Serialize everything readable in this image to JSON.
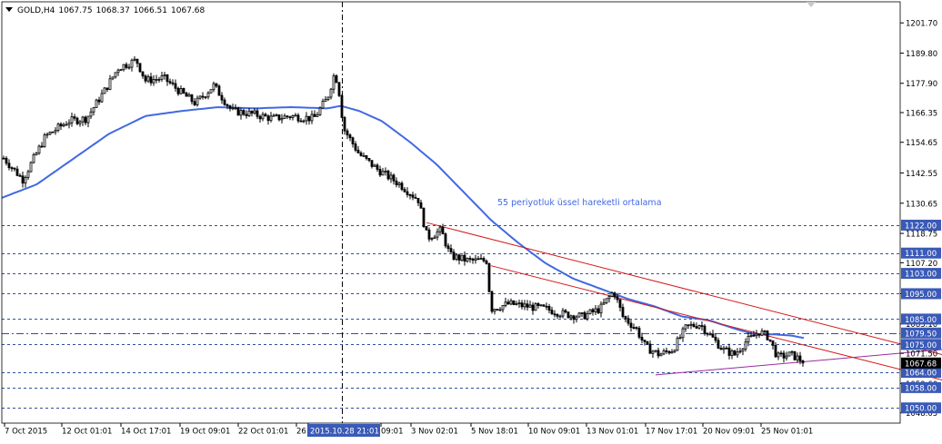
{
  "header": {
    "symbol": "GOLD,H4",
    "open": "1067.75",
    "high": "1068.37",
    "low": "1066.51",
    "close": "1067.68"
  },
  "annotation": {
    "ema_label": "55 periyotluk üssel hareketli ortalama"
  },
  "colors": {
    "background": "#ffffff",
    "candle": "#000000",
    "ema": "#4169e1",
    "trendline": "#d41a1a",
    "support_line": "#9a2a9a",
    "level_line": "#2e4fa0",
    "price_tag_bg": "#3a5ab8",
    "current_price_bg": "#000000",
    "crosshair_label_bg": "#3a5ab8"
  },
  "chart_data": {
    "type": "candlestick",
    "instrument": "GOLD",
    "timeframe": "H4",
    "y_axis": {
      "ylim": [
        1044.0,
        1210.0
      ],
      "ticks": [
        "1201.70",
        "1189.80",
        "1177.90",
        "1166.35",
        "1154.65",
        "1142.55",
        "1130.65",
        "1118.75",
        "1107.20",
        "1095.00",
        "1083.10",
        "1071.50",
        "1059.60",
        "1048.05"
      ]
    },
    "x_axis": {
      "tick_labels": [
        "7 Oct 2015",
        "12 Oct 01:01",
        "14 Oct 17:01",
        "19 Oct 09:01",
        "22 Oct 01:01",
        "26",
        "2015.10.28 21:01",
        "09:01",
        "3 Nov 02:01",
        "5 Nov 18:01",
        "10 Nov 09:01",
        "13 Nov 01:01",
        "17 Nov 17:01",
        "20 Nov 09:01",
        "25 Nov 01:01"
      ],
      "crosshair_label": "2015.10.28 21:01"
    },
    "horizontal_levels": [
      {
        "value": 1122.0,
        "label": "1122.00",
        "style": "dashed"
      },
      {
        "value": 1111.0,
        "label": "1111.00",
        "style": "dashed"
      },
      {
        "value": 1103.0,
        "label": "1103.00",
        "style": "dashed"
      },
      {
        "value": 1095.0,
        "label": "1095.00",
        "style": "dashed"
      },
      {
        "value": 1085.0,
        "label": "1085.00",
        "style": "dashed"
      },
      {
        "value": 1079.5,
        "label": "1079.50",
        "style": "dashdot"
      },
      {
        "value": 1075.0,
        "label": "1075.00",
        "style": "dashed"
      },
      {
        "value": 1064.0,
        "label": "1064.00",
        "style": "dashed"
      },
      {
        "value": 1058.0,
        "label": "1058.00",
        "style": "dashed"
      },
      {
        "value": 1050.0,
        "label": "1050.00",
        "style": "dashed"
      }
    ],
    "current_price": {
      "value": 1067.68,
      "label": "1067.68"
    },
    "price_anchors": [
      [
        0,
        1150
      ],
      [
        25,
        1140
      ],
      [
        50,
        1157
      ],
      [
        75,
        1163
      ],
      [
        95,
        1164
      ],
      [
        115,
        1175
      ],
      [
        130,
        1184
      ],
      [
        150,
        1187
      ],
      [
        160,
        1179
      ],
      [
        180,
        1180
      ],
      [
        200,
        1174
      ],
      [
        215,
        1170
      ],
      [
        235,
        1177
      ],
      [
        255,
        1167
      ],
      [
        275,
        1166
      ],
      [
        300,
        1164
      ],
      [
        320,
        1165
      ],
      [
        345,
        1164
      ],
      [
        360,
        1172
      ],
      [
        368,
        1182
      ],
      [
        372,
        1177
      ],
      [
        378,
        1160
      ],
      [
        395,
        1150
      ],
      [
        415,
        1144
      ],
      [
        440,
        1138
      ],
      [
        460,
        1132
      ],
      [
        470,
        1117
      ],
      [
        485,
        1120
      ],
      [
        495,
        1110
      ],
      [
        515,
        1108
      ],
      [
        535,
        1108
      ],
      [
        540,
        1089
      ],
      [
        560,
        1091
      ],
      [
        580,
        1090
      ],
      [
        600,
        1089
      ],
      [
        620,
        1087
      ],
      [
        640,
        1086
      ],
      [
        660,
        1089
      ],
      [
        675,
        1096
      ],
      [
        685,
        1086
      ],
      [
        700,
        1081
      ],
      [
        710,
        1074
      ],
      [
        725,
        1071
      ],
      [
        740,
        1073
      ],
      [
        755,
        1082
      ],
      [
        770,
        1083
      ],
      [
        780,
        1079
      ],
      [
        795,
        1073
      ],
      [
        808,
        1071
      ],
      [
        820,
        1076
      ],
      [
        835,
        1080
      ],
      [
        845,
        1078
      ],
      [
        855,
        1070
      ],
      [
        870,
        1071
      ],
      [
        880,
        1069
      ],
      [
        885,
        1067.68
      ]
    ],
    "ema55_anchors": [
      [
        0,
        1132.5
      ],
      [
        40,
        1138
      ],
      [
        80,
        1148
      ],
      [
        120,
        1158
      ],
      [
        160,
        1165
      ],
      [
        200,
        1167
      ],
      [
        240,
        1168.5
      ],
      [
        280,
        1168
      ],
      [
        320,
        1168.5
      ],
      [
        360,
        1168
      ],
      [
        375,
        1169
      ],
      [
        395,
        1167
      ],
      [
        420,
        1163
      ],
      [
        450,
        1155
      ],
      [
        480,
        1146
      ],
      [
        510,
        1135
      ],
      [
        540,
        1124
      ],
      [
        570,
        1115
      ],
      [
        600,
        1107
      ],
      [
        630,
        1101
      ],
      [
        660,
        1097
      ],
      [
        690,
        1093
      ],
      [
        720,
        1090
      ],
      [
        750,
        1086
      ],
      [
        780,
        1084.5
      ],
      [
        810,
        1081
      ],
      [
        830,
        1079
      ],
      [
        850,
        1079
      ],
      [
        870,
        1078.5
      ],
      [
        885,
        1077.5
      ]
    ],
    "trendlines": [
      {
        "kind": "resistance",
        "x0": 469,
        "y0": 1123,
        "x1": 1036,
        "y1": 1071
      },
      {
        "kind": "resistance",
        "x0": 540,
        "y0": 1106,
        "x1": 1036,
        "y1": 1061
      },
      {
        "kind": "support",
        "x0": 721,
        "y0": 1063,
        "x1": 1036,
        "y1": 1073
      }
    ]
  }
}
